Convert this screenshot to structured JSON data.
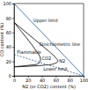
{
  "chart_data": {
    "type": "line",
    "x_label": "N2 (or CO2) content (%)",
    "y_label": "CO content (%)",
    "xlim": [
      0,
      100
    ],
    "xticks": [
      0,
      20,
      40,
      60,
      80,
      100
    ],
    "ylim": [
      0,
      100
    ],
    "yticks": [
      0,
      20,
      40,
      60,
      80,
      100
    ],
    "grid": false,
    "series": [
      {
        "name": "N2",
        "color": "#000000",
        "line_style": "solid",
        "x": [
          0,
          10,
          20,
          30,
          40,
          50,
          60,
          63,
          55,
          45,
          35,
          25,
          15,
          5,
          0
        ],
        "values": [
          74,
          66,
          58,
          50,
          42,
          34,
          25,
          20,
          16,
          15,
          14,
          13.5,
          13,
          12.6,
          12.5
        ]
      },
      {
        "name": "CO2",
        "color": "#000000",
        "line_style": "solid",
        "x": [
          0,
          10,
          20,
          30,
          38,
          35,
          25,
          15,
          5,
          0
        ],
        "values": [
          74,
          62,
          50,
          37,
          24,
          17,
          15,
          14,
          13,
          12.5
        ]
      },
      {
        "color": "#1f5fa8",
        "line_style": "solid",
        "x": [
          0,
          100
        ],
        "values": [
          100,
          0
        ]
      },
      {
        "color": "#1f5fa8",
        "line_style": "dashed",
        "x": [
          0,
          100
        ],
        "values": [
          29.6,
          0
        ]
      }
    ],
    "annotations": [
      {
        "text": "Upper limit",
        "x": 28,
        "y": 74
      },
      {
        "text": "Stoichiometric line",
        "x": 36,
        "y": 42
      },
      {
        "text": "Lower limit",
        "x": 42,
        "y": 7
      },
      {
        "text": "Flammable",
        "x": 4,
        "y": 30
      }
    ]
  }
}
